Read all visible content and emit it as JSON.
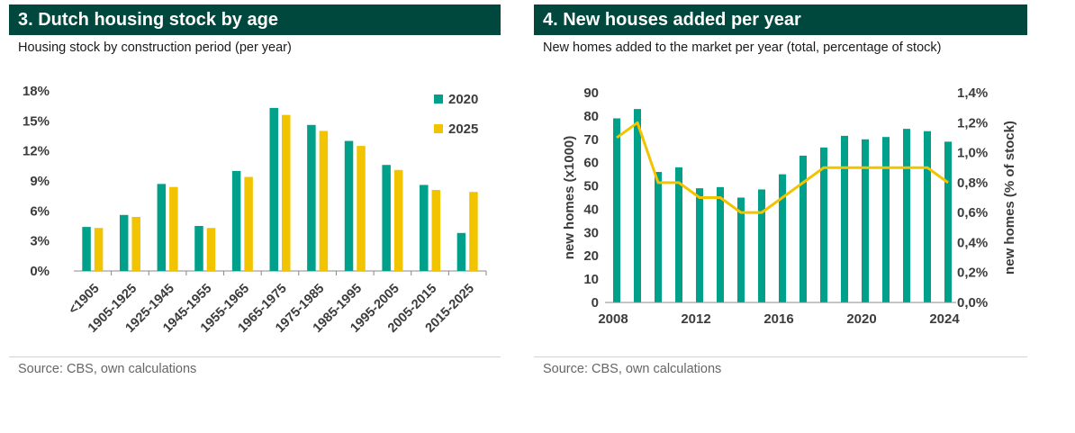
{
  "colors": {
    "green": "#00a08a",
    "yellow": "#f2c400",
    "header": "#00473e",
    "axis_text": "#3c3c3c"
  },
  "chart_data": [
    {
      "type": "bar",
      "title": "3.  Dutch housing stock by age",
      "subtitle": "Housing stock by construction period (per year)",
      "categories": [
        "<1905",
        "1905-1925",
        "1925-1945",
        "1945-1955",
        "1955-1965",
        "1965-1975",
        "1975-1985",
        "1985-1995",
        "1995-2005",
        "2005-2015",
        "2015-2025"
      ],
      "series": [
        {
          "name": "2020",
          "values": [
            4.4,
            5.6,
            8.7,
            4.5,
            10.0,
            16.3,
            14.6,
            13.0,
            10.6,
            8.6,
            3.8
          ]
        },
        {
          "name": "2025",
          "values": [
            4.3,
            5.4,
            8.4,
            4.3,
            9.4,
            15.6,
            14.0,
            12.5,
            10.1,
            8.1,
            7.9
          ]
        }
      ],
      "ylim": [
        0,
        18
      ],
      "yticks": [
        "0%",
        "3%",
        "6%",
        "9%",
        "12%",
        "15%",
        "18%"
      ],
      "legend_placement": "top-right",
      "grid": false,
      "source": "Source: CBS, own calculations"
    },
    {
      "type": "bar+line",
      "title": "4. New houses added per year",
      "subtitle": "New homes added to the market per year (total, percentage of stock)",
      "x": [
        2008,
        2009,
        2010,
        2011,
        2012,
        2013,
        2014,
        2015,
        2016,
        2017,
        2018,
        2019,
        2020,
        2021,
        2022,
        2023,
        2024
      ],
      "xticks": [
        "2008",
        "2012",
        "2016",
        "2020",
        "2024"
      ],
      "series": [
        {
          "axis": "left",
          "type": "bar",
          "values": [
            79,
            83,
            56,
            58,
            49,
            49.5,
            45,
            48.5,
            55,
            63,
            66.5,
            71.5,
            70,
            71,
            74.5,
            73.5,
            69
          ]
        },
        {
          "axis": "right",
          "type": "line",
          "values": [
            1.1,
            1.2,
            0.8,
            0.8,
            0.7,
            0.7,
            0.6,
            0.6,
            0.7,
            0.8,
            0.9,
            0.9,
            0.9,
            0.9,
            0.9,
            0.9,
            0.8
          ]
        }
      ],
      "ylabel": "new homes (x1000)",
      "ylim": [
        0,
        90
      ],
      "yticks": [
        "0",
        "10",
        "20",
        "30",
        "40",
        "50",
        "60",
        "70",
        "80",
        "90"
      ],
      "y2label": "new homes (% of stock)",
      "y2lim": [
        0,
        1.4
      ],
      "y2ticks": [
        "0,0%",
        "0,2%",
        "0,4%",
        "0,6%",
        "0,8%",
        "1,0%",
        "1,2%",
        "1,4%"
      ],
      "grid": false,
      "source": "Source: CBS, own calculations"
    }
  ]
}
